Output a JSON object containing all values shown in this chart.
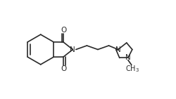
{
  "background_color": "#ffffff",
  "line_color": "#2a2a2a",
  "text_color": "#2a2a2a",
  "line_width": 1.2,
  "font_size": 7.5,
  "figsize": [
    2.51,
    1.41
  ],
  "dpi": 100,
  "xlim": [
    0,
    10
  ],
  "ylim": [
    0,
    5.6
  ]
}
